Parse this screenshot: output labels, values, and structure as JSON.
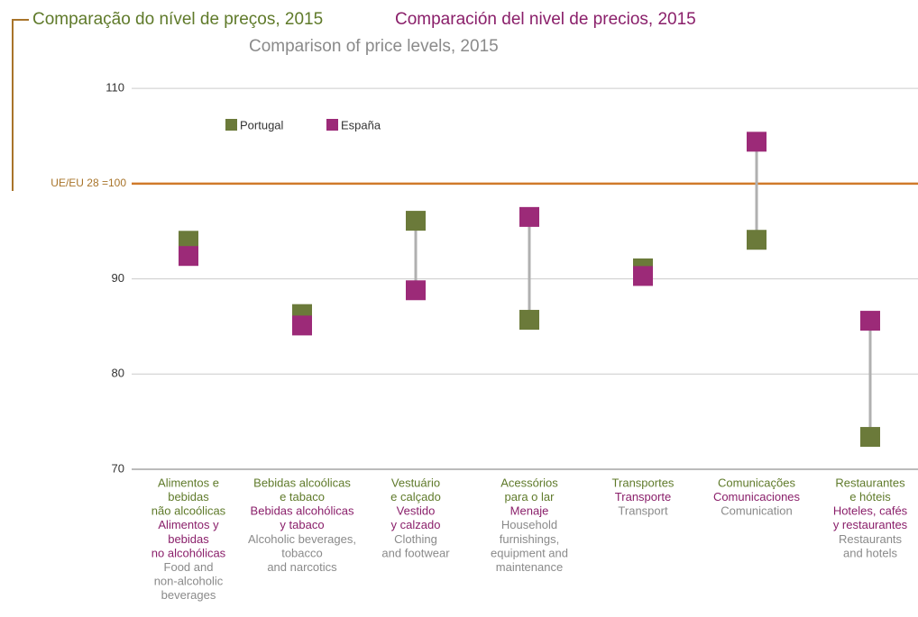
{
  "chart_data": {
    "type": "dumbbell",
    "title_pt": "Comparação do nível de preços, 2015",
    "title_es": "Comparación del nivel de precios, 2015",
    "title_en": "Comparison of price levels, 2015",
    "categories": [
      {
        "pt": [
          "Alimentos e",
          "bebidas",
          "não alcoólicas"
        ],
        "es": [
          "Alimentos y",
          "bebidas",
          "no alcohólicas"
        ],
        "en": [
          "Food and",
          "non-alcoholic",
          "beverages"
        ]
      },
      {
        "pt": [
          "Bebidas alcoólicas",
          "e tabaco"
        ],
        "es": [
          "Bebidas alcohólicas",
          "y tabaco"
        ],
        "en": [
          "Alcoholic beverages,",
          "tobacco",
          "and narcotics"
        ]
      },
      {
        "pt": [
          "Vestuário",
          "e calçado"
        ],
        "es": [
          "Vestido",
          "y calzado"
        ],
        "en": [
          "Clothing",
          "and footwear"
        ]
      },
      {
        "pt": [
          "Acessórios",
          "para o lar"
        ],
        "es": [
          "Menaje"
        ],
        "en": [
          "Household",
          "furnishings,",
          "equipment and",
          "maintenance"
        ]
      },
      {
        "pt": [
          "Transportes"
        ],
        "es": [
          "Transporte"
        ],
        "en": [
          "Transport"
        ]
      },
      {
        "pt": [
          "Comunicações"
        ],
        "es": [
          "Comunicaciones"
        ],
        "en": [
          "Comunication"
        ]
      },
      {
        "pt": [
          "Restaurantes",
          "e hóteis"
        ],
        "es": [
          "Hoteles, cafés",
          "y restaurantes"
        ],
        "en": [
          "Restaurants",
          "and hotels"
        ]
      }
    ],
    "series": [
      {
        "name": "Portugal",
        "color": "#6b7a3a",
        "values": [
          94.0,
          86.3,
          96.1,
          85.7,
          91.1,
          94.1,
          73.4
        ]
      },
      {
        "name": "España",
        "color": "#9c2a78",
        "values": [
          92.4,
          85.1,
          88.8,
          96.5,
          90.3,
          104.4,
          85.6
        ]
      }
    ],
    "reference": {
      "value": 100,
      "label": "UE/EU 28 =100",
      "color": "#d07a2a"
    },
    "ylim": [
      70,
      112
    ],
    "yticks": [
      70,
      80,
      90,
      110
    ],
    "grid": true
  }
}
